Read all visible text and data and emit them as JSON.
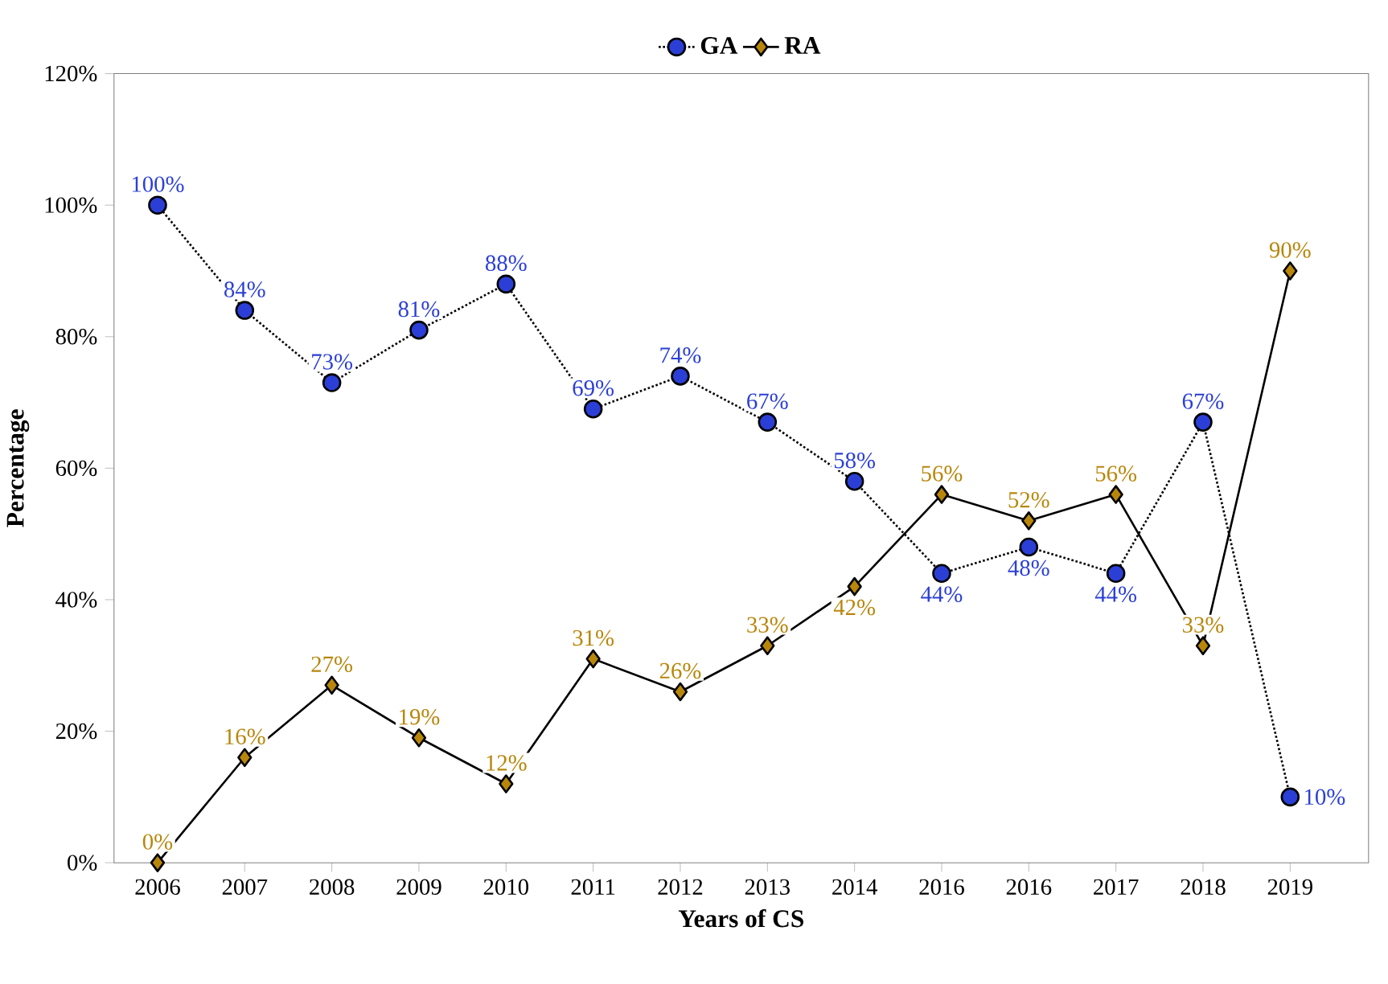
{
  "chart_data": {
    "type": "line",
    "xlabel": "Years of CS",
    "ylabel": "Percentage",
    "categories": [
      "2006",
      "2007",
      "2008",
      "2009",
      "2010",
      "2011",
      "2012",
      "2013",
      "2014",
      "2016",
      "2016",
      "2017",
      "2018",
      "2019"
    ],
    "ylim": [
      0,
      120
    ],
    "yticks": [
      {
        "value": 0,
        "label": "0%"
      },
      {
        "value": 20,
        "label": "20%"
      },
      {
        "value": 40,
        "label": "40%"
      },
      {
        "value": 60,
        "label": "60%"
      },
      {
        "value": 80,
        "label": "80%"
      },
      {
        "value": 100,
        "label": "100%"
      },
      {
        "value": 120,
        "label": "120%"
      }
    ],
    "legend": "top",
    "grid": false,
    "series": [
      {
        "name": "GA",
        "color": "#2b3fd6",
        "marker": "circle",
        "line_style": "dotted",
        "values": [
          100,
          84,
          73,
          81,
          88,
          69,
          74,
          67,
          58,
          44,
          48,
          44,
          67,
          10
        ],
        "value_labels": [
          "100%",
          "84%",
          "73%",
          "81%",
          "88%",
          "69%",
          "74%",
          "67%",
          "58%",
          "44%",
          "48%",
          "44%",
          "67%",
          "10%"
        ]
      },
      {
        "name": "RA",
        "color": "#b8860b",
        "marker": "diamond",
        "line_style": "solid",
        "values": [
          0,
          16,
          27,
          19,
          12,
          31,
          26,
          33,
          42,
          56,
          52,
          56,
          33,
          90
        ],
        "value_labels": [
          "0%",
          "16%",
          "27%",
          "19%",
          "12%",
          "31%",
          "26%",
          "33%",
          "42%",
          "56%",
          "52%",
          "56%",
          "33%",
          "90%"
        ]
      }
    ]
  }
}
